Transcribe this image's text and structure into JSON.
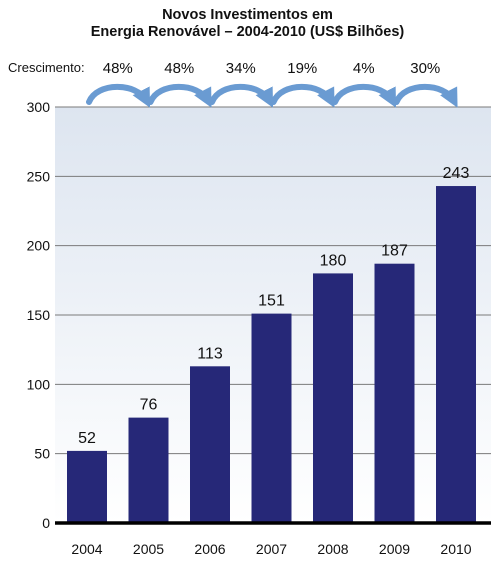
{
  "title_line1": "Novos Investimentos em",
  "title_line2": "Energia Renovável – 2004-2010 (US$ Bilhões)",
  "growth_label": "Crescimento:",
  "growth_rates": [
    "48%",
    "48%",
    "34%",
    "19%",
    "4%",
    "30%"
  ],
  "colors": {
    "bar": "#262878",
    "plot_bg_top": "#dde5f0",
    "plot_bg_bottom": "#ffffff",
    "arrow": "#6a9bd2",
    "axis": "#000000",
    "grid": "#7a7a7a"
  },
  "chart_data": {
    "type": "bar",
    "title": "Novos Investimentos em Energia Renovável – 2004-2010 (US$ Bilhões)",
    "categories": [
      "2004",
      "2005",
      "2006",
      "2007",
      "2008",
      "2009",
      "2010"
    ],
    "values": [
      52,
      76,
      113,
      151,
      180,
      187,
      243
    ],
    "data_labels": [
      "52",
      "76",
      "113",
      "151",
      "180",
      "187",
      "243"
    ],
    "ylim": [
      0,
      300
    ],
    "yticks": [
      0,
      50,
      100,
      150,
      200,
      250,
      300
    ],
    "grid": true,
    "xlabel": "",
    "ylabel": ""
  }
}
